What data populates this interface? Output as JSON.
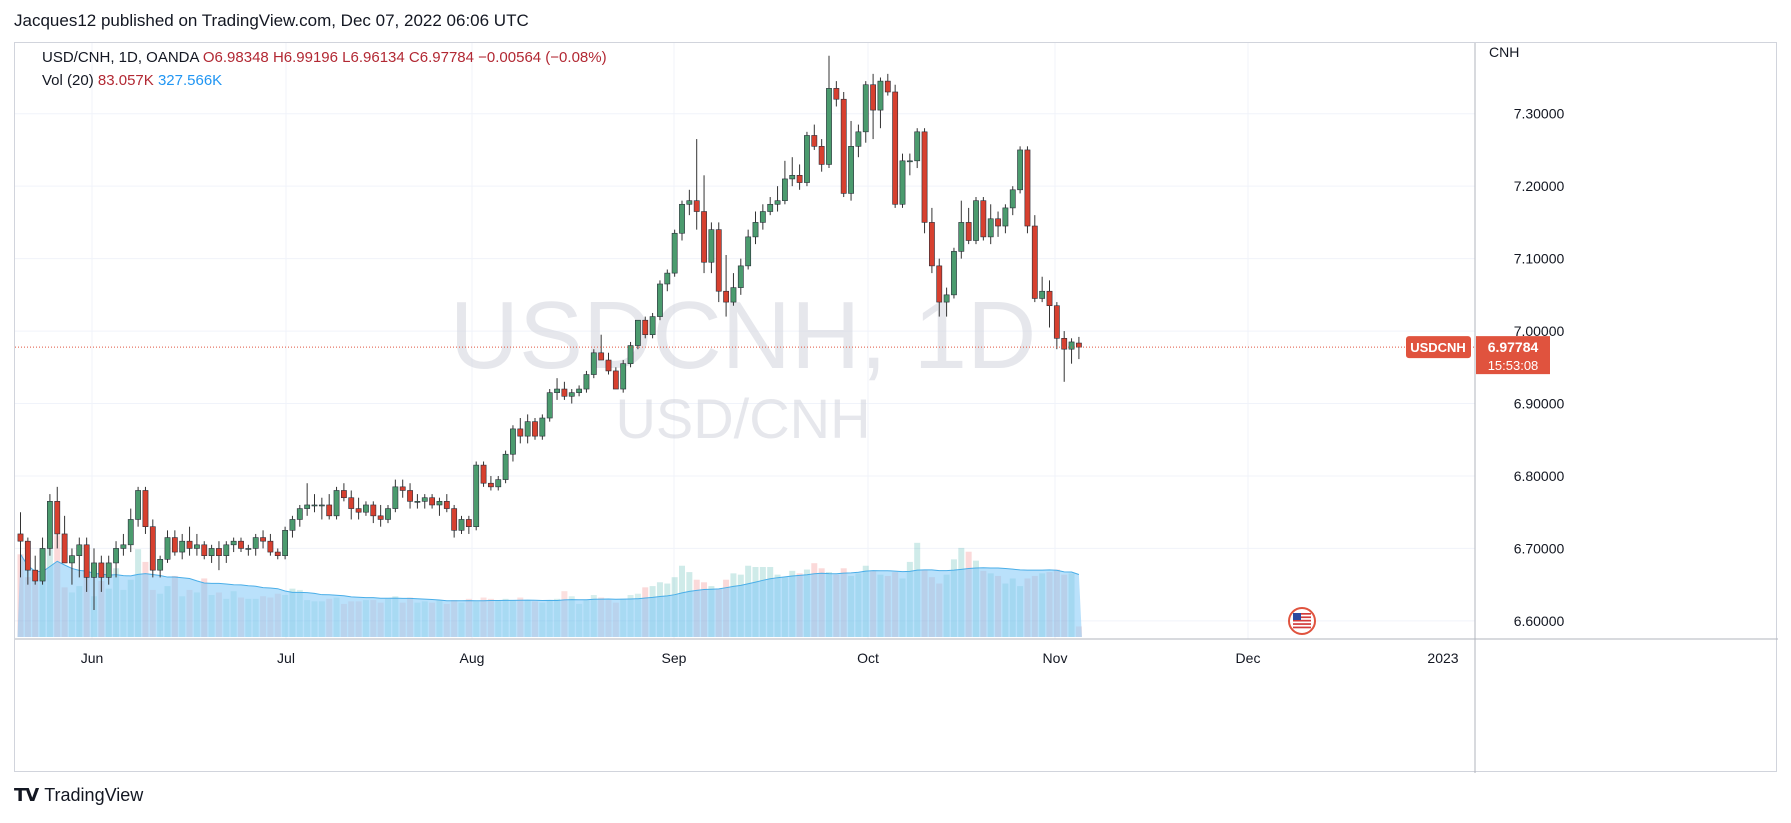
{
  "publish_line": "Jacques12 published on TradingView.com, Dec 07, 2022 06:06 UTC",
  "legend": {
    "symbol": "USD/CNH, 1D, OANDA",
    "open": "O6.98348",
    "high": "H6.99196",
    "low": "L6.96134",
    "close": "C6.97784",
    "change": "−0.00564 (−0.08%)",
    "vol_label": "Vol (20)",
    "vol_value": "83.057K",
    "vol_ma": "327.566K"
  },
  "watermark": {
    "main": "USDCNH, 1D",
    "sub": "USD/CNH"
  },
  "price_axis": {
    "currency": "CNH",
    "ticks": [
      "7.30000",
      "7.20000",
      "7.10000",
      "7.00000",
      "6.90000",
      "6.80000",
      "6.70000",
      "6.60000"
    ]
  },
  "last_price": {
    "symbol": "USDCNH",
    "price": "6.97784",
    "countdown": "15:53:08"
  },
  "time_axis": {
    "labels": [
      "Jun",
      "Jul",
      "Aug",
      "Sep",
      "Oct",
      "Nov",
      "Dec",
      "2023"
    ]
  },
  "brand": {
    "name": "TradingView",
    "logo": "TV"
  },
  "colors": {
    "up": "#4b9b6e",
    "down": "#d7402f",
    "volume_ma": "#81c9f7",
    "last_price": "#e0533e"
  },
  "chart_data": {
    "type": "candlestick",
    "symbol": "USD/CNH",
    "timeframe": "1D",
    "ylim": [
      6.575,
      7.37
    ],
    "y_ticks": [
      6.6,
      6.7,
      6.8,
      6.9,
      7.0,
      7.1,
      7.2,
      7.3
    ],
    "x_labels": [
      "Jun",
      "Jul",
      "Aug",
      "Sep",
      "Oct",
      "Nov",
      "Dec",
      "2023"
    ],
    "ohlc": [
      [
        6.72,
        6.75,
        6.66,
        6.71
      ],
      [
        6.71,
        6.715,
        6.65,
        6.67
      ],
      [
        6.67,
        6.69,
        6.65,
        6.655
      ],
      [
        6.655,
        6.715,
        6.65,
        6.7
      ],
      [
        6.7,
        6.775,
        6.69,
        6.765
      ],
      [
        6.765,
        6.785,
        6.7,
        6.72
      ],
      [
        6.72,
        6.745,
        6.68,
        6.68
      ],
      [
        6.68,
        6.7,
        6.65,
        6.69
      ],
      [
        6.69,
        6.715,
        6.66,
        6.705
      ],
      [
        6.705,
        6.715,
        6.64,
        6.66
      ],
      [
        6.66,
        6.7,
        6.615,
        6.68
      ],
      [
        6.68,
        6.69,
        6.64,
        6.66
      ],
      [
        6.66,
        6.69,
        6.65,
        6.68
      ],
      [
        6.68,
        6.71,
        6.66,
        6.7
      ],
      [
        6.7,
        6.72,
        6.69,
        6.705
      ],
      [
        6.705,
        6.755,
        6.695,
        6.74
      ],
      [
        6.74,
        6.785,
        6.73,
        6.78
      ],
      [
        6.78,
        6.785,
        6.72,
        6.73
      ],
      [
        6.73,
        6.74,
        6.66,
        6.67
      ],
      [
        6.67,
        6.69,
        6.66,
        6.685
      ],
      [
        6.685,
        6.725,
        6.68,
        6.715
      ],
      [
        6.715,
        6.725,
        6.69,
        6.695
      ],
      [
        6.695,
        6.72,
        6.685,
        6.71
      ],
      [
        6.71,
        6.73,
        6.69,
        6.7
      ],
      [
        6.7,
        6.72,
        6.69,
        6.705
      ],
      [
        6.705,
        6.71,
        6.685,
        6.69
      ],
      [
        6.69,
        6.705,
        6.68,
        6.7
      ],
      [
        6.7,
        6.71,
        6.67,
        6.69
      ],
      [
        6.69,
        6.71,
        6.68,
        6.705
      ],
      [
        6.705,
        6.715,
        6.695,
        6.71
      ],
      [
        6.71,
        6.715,
        6.695,
        6.7
      ],
      [
        6.7,
        6.705,
        6.69,
        6.7
      ],
      [
        6.7,
        6.72,
        6.69,
        6.715
      ],
      [
        6.715,
        6.725,
        6.7,
        6.71
      ],
      [
        6.71,
        6.72,
        6.69,
        6.695
      ],
      [
        6.695,
        6.7,
        6.685,
        6.69
      ],
      [
        6.69,
        6.73,
        6.685,
        6.725
      ],
      [
        6.725,
        6.745,
        6.715,
        6.74
      ],
      [
        6.74,
        6.76,
        6.73,
        6.755
      ],
      [
        6.755,
        6.79,
        6.745,
        6.76
      ],
      [
        6.76,
        6.775,
        6.75,
        6.76
      ],
      [
        6.76,
        6.77,
        6.74,
        6.76
      ],
      [
        6.76,
        6.775,
        6.74,
        6.745
      ],
      [
        6.745,
        6.785,
        6.74,
        6.78
      ],
      [
        6.78,
        6.79,
        6.765,
        6.77
      ],
      [
        6.77,
        6.78,
        6.74,
        6.755
      ],
      [
        6.755,
        6.77,
        6.74,
        6.75
      ],
      [
        6.75,
        6.765,
        6.745,
        6.76
      ],
      [
        6.76,
        6.765,
        6.735,
        6.745
      ],
      [
        6.745,
        6.76,
        6.73,
        6.74
      ],
      [
        6.74,
        6.76,
        6.735,
        6.755
      ],
      [
        6.755,
        6.795,
        6.75,
        6.785
      ],
      [
        6.785,
        6.795,
        6.77,
        6.78
      ],
      [
        6.78,
        6.79,
        6.755,
        6.765
      ],
      [
        6.765,
        6.775,
        6.755,
        6.765
      ],
      [
        6.765,
        6.775,
        6.755,
        6.77
      ],
      [
        6.77,
        6.775,
        6.755,
        6.76
      ],
      [
        6.76,
        6.77,
        6.745,
        6.765
      ],
      [
        6.765,
        6.775,
        6.75,
        6.755
      ],
      [
        6.755,
        6.76,
        6.715,
        6.725
      ],
      [
        6.725,
        6.745,
        6.72,
        6.74
      ],
      [
        6.74,
        6.745,
        6.72,
        6.73
      ],
      [
        6.73,
        6.82,
        6.725,
        6.815
      ],
      [
        6.815,
        6.82,
        6.785,
        6.79
      ],
      [
        6.79,
        6.8,
        6.78,
        6.785
      ],
      [
        6.785,
        6.8,
        6.78,
        6.795
      ],
      [
        6.795,
        6.835,
        6.79,
        6.83
      ],
      [
        6.83,
        6.87,
        6.82,
        6.865
      ],
      [
        6.865,
        6.88,
        6.845,
        6.855
      ],
      [
        6.855,
        6.885,
        6.845,
        6.875
      ],
      [
        6.875,
        6.88,
        6.85,
        6.855
      ],
      [
        6.855,
        6.885,
        6.85,
        6.88
      ],
      [
        6.88,
        6.92,
        6.875,
        6.915
      ],
      [
        6.915,
        6.935,
        6.905,
        6.92
      ],
      [
        6.92,
        6.93,
        6.905,
        6.91
      ],
      [
        6.91,
        6.92,
        6.9,
        6.915
      ],
      [
        6.915,
        6.925,
        6.91,
        6.92
      ],
      [
        6.92,
        6.945,
        6.915,
        6.94
      ],
      [
        6.94,
        6.975,
        6.935,
        6.97
      ],
      [
        6.97,
        6.995,
        6.96,
        6.96
      ],
      [
        6.96,
        6.97,
        6.94,
        6.945
      ],
      [
        6.945,
        6.95,
        6.92,
        6.92
      ],
      [
        6.92,
        6.96,
        6.915,
        6.955
      ],
      [
        6.955,
        6.985,
        6.95,
        6.98
      ],
      [
        6.98,
        7.01,
        6.975,
        7.015
      ],
      [
        7.015,
        7.02,
        6.99,
        6.995
      ],
      [
        6.995,
        7.025,
        6.99,
        7.02
      ],
      [
        7.02,
        7.07,
        7.015,
        7.065
      ],
      [
        7.065,
        7.085,
        7.055,
        7.08
      ],
      [
        7.08,
        7.14,
        7.075,
        7.135
      ],
      [
        7.135,
        7.18,
        7.125,
        7.175
      ],
      [
        7.175,
        7.195,
        7.16,
        7.18
      ],
      [
        7.18,
        7.265,
        7.14,
        7.165
      ],
      [
        7.165,
        7.215,
        7.08,
        7.095
      ],
      [
        7.095,
        7.15,
        7.08,
        7.14
      ],
      [
        7.14,
        7.15,
        7.04,
        7.055
      ],
      [
        7.055,
        7.105,
        7.02,
        7.04
      ],
      [
        7.04,
        7.08,
        7.035,
        7.06
      ],
      [
        7.06,
        7.1,
        7.05,
        7.09
      ],
      [
        7.09,
        7.14,
        7.085,
        7.13
      ],
      [
        7.13,
        7.165,
        7.12,
        7.15
      ],
      [
        7.15,
        7.175,
        7.14,
        7.165
      ],
      [
        7.165,
        7.185,
        7.16,
        7.175
      ],
      [
        7.175,
        7.2,
        7.165,
        7.18
      ],
      [
        7.18,
        7.235,
        7.175,
        7.21
      ],
      [
        7.21,
        7.24,
        7.2,
        7.215
      ],
      [
        7.215,
        7.23,
        7.195,
        7.205
      ],
      [
        7.205,
        7.275,
        7.2,
        7.27
      ],
      [
        7.27,
        7.285,
        7.25,
        7.255
      ],
      [
        7.255,
        7.265,
        7.22,
        7.23
      ],
      [
        7.23,
        7.38,
        7.225,
        7.335
      ],
      [
        7.335,
        7.345,
        7.31,
        7.32
      ],
      [
        7.32,
        7.33,
        7.185,
        7.19
      ],
      [
        7.19,
        7.29,
        7.18,
        7.255
      ],
      [
        7.255,
        7.285,
        7.24,
        7.275
      ],
      [
        7.275,
        7.345,
        7.26,
        7.34
      ],
      [
        7.34,
        7.355,
        7.265,
        7.305
      ],
      [
        7.305,
        7.35,
        7.28,
        7.345
      ],
      [
        7.345,
        7.355,
        7.325,
        7.33
      ],
      [
        7.33,
        7.34,
        7.17,
        7.175
      ],
      [
        7.175,
        7.245,
        7.17,
        7.235
      ],
      [
        7.235,
        7.245,
        7.215,
        7.235
      ],
      [
        7.235,
        7.28,
        7.225,
        7.275
      ],
      [
        7.275,
        7.28,
        7.135,
        7.15
      ],
      [
        7.15,
        7.17,
        7.08,
        7.09
      ],
      [
        7.09,
        7.1,
        7.02,
        7.04
      ],
      [
        7.04,
        7.06,
        7.02,
        7.05
      ],
      [
        7.05,
        7.115,
        7.045,
        7.11
      ],
      [
        7.11,
        7.18,
        7.1,
        7.15
      ],
      [
        7.15,
        7.17,
        7.12,
        7.125
      ],
      [
        7.125,
        7.185,
        7.12,
        7.18
      ],
      [
        7.18,
        7.185,
        7.125,
        7.13
      ],
      [
        7.13,
        7.175,
        7.12,
        7.155
      ],
      [
        7.155,
        7.165,
        7.13,
        7.145
      ],
      [
        7.145,
        7.175,
        7.135,
        7.17
      ],
      [
        7.17,
        7.2,
        7.16,
        7.195
      ],
      [
        7.195,
        7.255,
        7.19,
        7.25
      ],
      [
        7.25,
        7.255,
        7.135,
        7.145
      ],
      [
        7.145,
        7.16,
        7.04,
        7.045
      ],
      [
        7.045,
        7.075,
        7.04,
        7.055
      ],
      [
        7.055,
        7.07,
        7.005,
        7.035
      ],
      [
        7.035,
        7.04,
        6.975,
        6.99
      ],
      [
        6.99,
        7.0,
        6.93,
        6.975
      ],
      [
        6.975,
        6.99,
        6.955,
        6.985
      ],
      [
        6.98348,
        6.99196,
        6.96134,
        6.97784
      ]
    ],
    "volume_k": [
      650,
      470,
      430,
      500,
      720,
      800,
      390,
      350,
      400,
      470,
      320,
      440,
      380,
      540,
      370,
      450,
      690,
      590,
      370,
      340,
      400,
      480,
      320,
      370,
      350,
      460,
      330,
      350,
      300,
      360,
      310,
      300,
      300,
      320,
      310,
      340,
      330,
      380,
      370,
      290,
      280,
      280,
      300,
      310,
      260,
      280,
      280,
      290,
      290,
      270,
      300,
      320,
      270,
      310,
      270,
      280,
      270,
      290,
      260,
      290,
      270,
      300,
      280,
      310,
      300,
      290,
      300,
      290,
      310,
      290,
      280,
      270,
      290,
      300,
      360,
      320,
      260,
      290,
      330,
      310,
      290,
      270,
      300,
      330,
      340,
      390,
      400,
      430,
      420,
      470,
      560,
      510,
      450,
      430,
      400,
      380,
      450,
      500,
      490,
      560,
      550,
      550,
      550,
      490,
      470,
      520,
      500,
      530,
      580,
      540,
      510,
      490,
      540,
      480,
      500,
      560,
      520,
      490,
      480,
      510,
      460,
      590,
      740,
      530,
      470,
      420,
      490,
      610,
      700,
      670,
      600,
      520,
      500,
      480,
      420,
      460,
      400,
      460,
      480,
      500,
      510,
      530,
      490,
      500,
      83.057
    ],
    "volume_ma_k": 327.566,
    "last_close": 6.97784
  }
}
